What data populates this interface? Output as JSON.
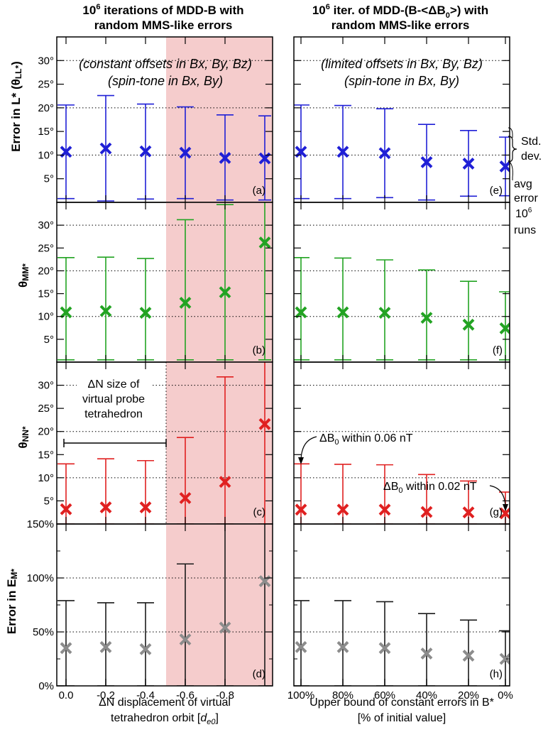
{
  "headers": {
    "left_line1_pre": "10",
    "left_line1_sup": "6",
    "left_line1_post": " iterations of MDD-B with",
    "left_line2": "random MMS-like errors",
    "right_line1_pre": "10",
    "right_line1_sup": "6",
    "right_line1_mid": " iter. of MDD-(B-<ΔB",
    "right_line1_sub": "0",
    "right_line1_post": ">) with",
    "right_line2": "random MMS-like errors"
  },
  "row_labels": {
    "a": "Error in L* (θ",
    "a_sub": "LL*",
    "a_end": ")",
    "b": "θ",
    "b_sub": "MM*",
    "c": "θ",
    "c_sub": "NN*",
    "d": "Error in E",
    "d_sub": "M*"
  },
  "notes": {
    "left_line1": "(constant offsets in Bx, By, Bz)",
    "left_line2": "(spin-tone in Bx, By)",
    "right_line1": "(limited offsets in Bx, By, Bz)",
    "right_line2": "(spin-tone in Bx, By)"
  },
  "legend": {
    "std_line1": "Std.",
    "std_line2": "dev.",
    "avg_line1": "avg",
    "avg_line2": "error",
    "runs_pre": "10",
    "runs_sup": "6",
    "runs_line2": "runs"
  },
  "annotations": {
    "probe_line1": "ΔN size of",
    "probe_line2": "virtual probe",
    "probe_line3": "tetrahedron",
    "db006_pre": "ΔB",
    "db006_sub": "0",
    "db006_post": " within 0.06 nT",
    "db002_pre": "ΔB",
    "db002_sub": "0",
    "db002_post": " within 0.02 nT"
  },
  "x_axis": {
    "left_ticks": [
      "0.0",
      "-0.2",
      "-0.4",
      "-0.6",
      "-0.8"
    ],
    "right_ticks": [
      "100%",
      "80%",
      "60%",
      "40%",
      "20%",
      "0%"
    ],
    "left_label_line1": "ΔN displacement of virtual",
    "left_label_line2_pre": "tetrahedron orbit [",
    "left_label_line2_it": "d",
    "left_label_line2_sub": "e0",
    "left_label_line2_post": "]",
    "right_label_line1": "Upper bound of constant errors in B*",
    "right_label_line2": "[% of initial value]"
  },
  "y_axis": {
    "angle_ticks": [
      "5°",
      "10°",
      "15°",
      "20°",
      "25°",
      "30°"
    ],
    "energy_ticks": [
      "0%",
      "50%",
      "100%",
      "150%"
    ]
  },
  "colors": {
    "a": "#1f1fd6",
    "b": "#22a322",
    "c": "#e02020",
    "d_bar": "#1a1a1a",
    "d_marker": "#8c8c8c",
    "shade": "#f5cccc",
    "grid": "#000000"
  },
  "chart_data": [
    {
      "panel": "a",
      "type": "scatter",
      "ylim": [
        0,
        35
      ],
      "x": [
        0.0,
        -0.2,
        -0.4,
        -0.6,
        -0.8,
        -1.0
      ],
      "avg": [
        10.7,
        11.4,
        10.8,
        10.5,
        9.4,
        9.3
      ],
      "low": [
        0.8,
        0.3,
        0.7,
        0.8,
        0.5,
        0.5
      ],
      "high": [
        20.6,
        22.6,
        20.8,
        20.2,
        18.5,
        18.3
      ],
      "shaded_from_x": -0.5,
      "label": "(a)"
    },
    {
      "panel": "b",
      "type": "scatter",
      "ylim": [
        0,
        35
      ],
      "x": [
        0.0,
        -0.2,
        -0.4,
        -0.6,
        -0.8,
        -1.0
      ],
      "avg": [
        10.9,
        11.2,
        10.8,
        13.0,
        15.3,
        26.2
      ],
      "low": [
        0.5,
        0.5,
        0.5,
        0.5,
        0.5,
        0.5
      ],
      "high": [
        22.9,
        23.0,
        22.7,
        31.2,
        34.5,
        35.0
      ],
      "shaded_from_x": -0.5,
      "label": "(b)"
    },
    {
      "panel": "c",
      "type": "scatter",
      "ylim": [
        0,
        35
      ],
      "x": [
        0.0,
        -0.2,
        -0.4,
        -0.6,
        -0.8,
        -1.0
      ],
      "avg": [
        3.2,
        3.6,
        3.6,
        5.6,
        9.1,
        21.6
      ],
      "low": [
        0.0,
        0.0,
        0.0,
        0.0,
        0.0,
        0.0
      ],
      "high": [
        13.0,
        14.1,
        13.7,
        18.7,
        31.8,
        35.0
      ],
      "shaded_from_x": -0.5,
      "label": "(c)"
    },
    {
      "panel": "d",
      "type": "scatter",
      "ylim": [
        0,
        150
      ],
      "x": [
        0.0,
        -0.2,
        -0.4,
        -0.6,
        -0.8,
        -1.0
      ],
      "avg": [
        35,
        36,
        34,
        43,
        54,
        97
      ],
      "low": [
        0,
        0,
        0,
        0,
        0,
        0
      ],
      "high": [
        79,
        77,
        77,
        113,
        150,
        150
      ],
      "shaded_from_x": -0.5,
      "label": "(d)"
    },
    {
      "panel": "e",
      "type": "scatter",
      "ylim": [
        0,
        35
      ],
      "x": [
        100,
        80,
        60,
        40,
        20,
        0
      ],
      "avg": [
        10.7,
        10.7,
        10.4,
        8.5,
        8.2,
        7.6
      ],
      "low": [
        0.8,
        0.8,
        1.0,
        0.5,
        1.3,
        1.4
      ],
      "high": [
        20.6,
        20.5,
        19.8,
        16.5,
        15.2,
        13.8
      ],
      "label": "(e)"
    },
    {
      "panel": "f",
      "type": "scatter",
      "ylim": [
        0,
        35
      ],
      "x": [
        100,
        80,
        60,
        40,
        20,
        0
      ],
      "avg": [
        10.9,
        10.9,
        10.8,
        9.7,
        8.2,
        7.4
      ],
      "low": [
        0.5,
        0.5,
        0.5,
        0.5,
        0.5,
        0.5
      ],
      "high": [
        22.9,
        22.8,
        22.4,
        20.2,
        17.7,
        15.4
      ],
      "label": "(f)"
    },
    {
      "panel": "g",
      "type": "scatter",
      "ylim": [
        0,
        35
      ],
      "x": [
        100,
        80,
        60,
        40,
        20,
        0
      ],
      "avg": [
        3.1,
        3.1,
        3.1,
        2.6,
        2.5,
        2.3
      ],
      "low": [
        0.0,
        0.0,
        0.0,
        0.0,
        0.0,
        0.0
      ],
      "high": [
        13.0,
        12.9,
        12.8,
        10.7,
        9.3,
        6.9
      ],
      "label": "(g)"
    },
    {
      "panel": "h",
      "type": "scatter",
      "ylim": [
        0,
        150
      ],
      "x": [
        100,
        80,
        60,
        40,
        20,
        0
      ],
      "avg": [
        36,
        36,
        35,
        30,
        28,
        25
      ],
      "low": [
        0,
        0,
        0,
        0,
        0,
        0
      ],
      "high": [
        79,
        79,
        78,
        67,
        61,
        51
      ],
      "label": "(h)"
    }
  ]
}
